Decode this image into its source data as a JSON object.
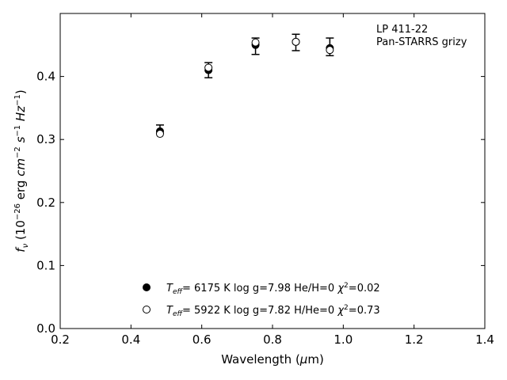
{
  "chart_data": {
    "type": "scatter",
    "annotation": {
      "line1": "LP 411-22",
      "line2": "Pan-STARRS grizy"
    },
    "xlabel": "Wavelength (μm)",
    "ylabel": "f_ν (10^-26 erg cm^-2 s^-1 Hz^-1)",
    "xlim": [
      0.2,
      1.4
    ],
    "ylim": [
      0.0,
      0.5
    ],
    "x_ticks": [
      0.2,
      0.4,
      0.6,
      0.8,
      1.0,
      1.2,
      1.4
    ],
    "y_ticks": [
      0.0,
      0.1,
      0.2,
      0.3,
      0.4
    ],
    "grid": false,
    "legend_position": "bottom-center",
    "observed": {
      "x": [
        0.482,
        0.619,
        0.752,
        0.866,
        0.962
      ],
      "y": [
        0.316,
        0.412,
        0.45,
        0.455,
        0.446
      ],
      "yerr_low": [
        0.006,
        0.014,
        0.015,
        0.014,
        0.013
      ],
      "yerr_high": [
        0.007,
        0.01,
        0.011,
        0.012,
        0.015
      ]
    },
    "series": [
      {
        "marker": "filled-circle",
        "legend": {
          "teff_value": "6175 K",
          "logg": "log g=7.98",
          "comp": "He/H=0",
          "chi2_value": "0.02"
        },
        "x": [
          0.482,
          0.619,
          0.752,
          0.866,
          0.962
        ],
        "y": [
          0.313,
          0.41,
          0.45,
          0.455,
          0.445
        ]
      },
      {
        "marker": "open-circle",
        "legend": {
          "teff_value": "5922 K",
          "logg": "log g=7.82",
          "comp": "H/He=0",
          "chi2_value": "0.73"
        },
        "x": [
          0.482,
          0.619,
          0.752,
          0.866,
          0.962
        ],
        "y": [
          0.309,
          0.414,
          0.454,
          0.455,
          0.442
        ]
      }
    ],
    "colors": {
      "ink": "#000000",
      "background": "#ffffff"
    }
  }
}
